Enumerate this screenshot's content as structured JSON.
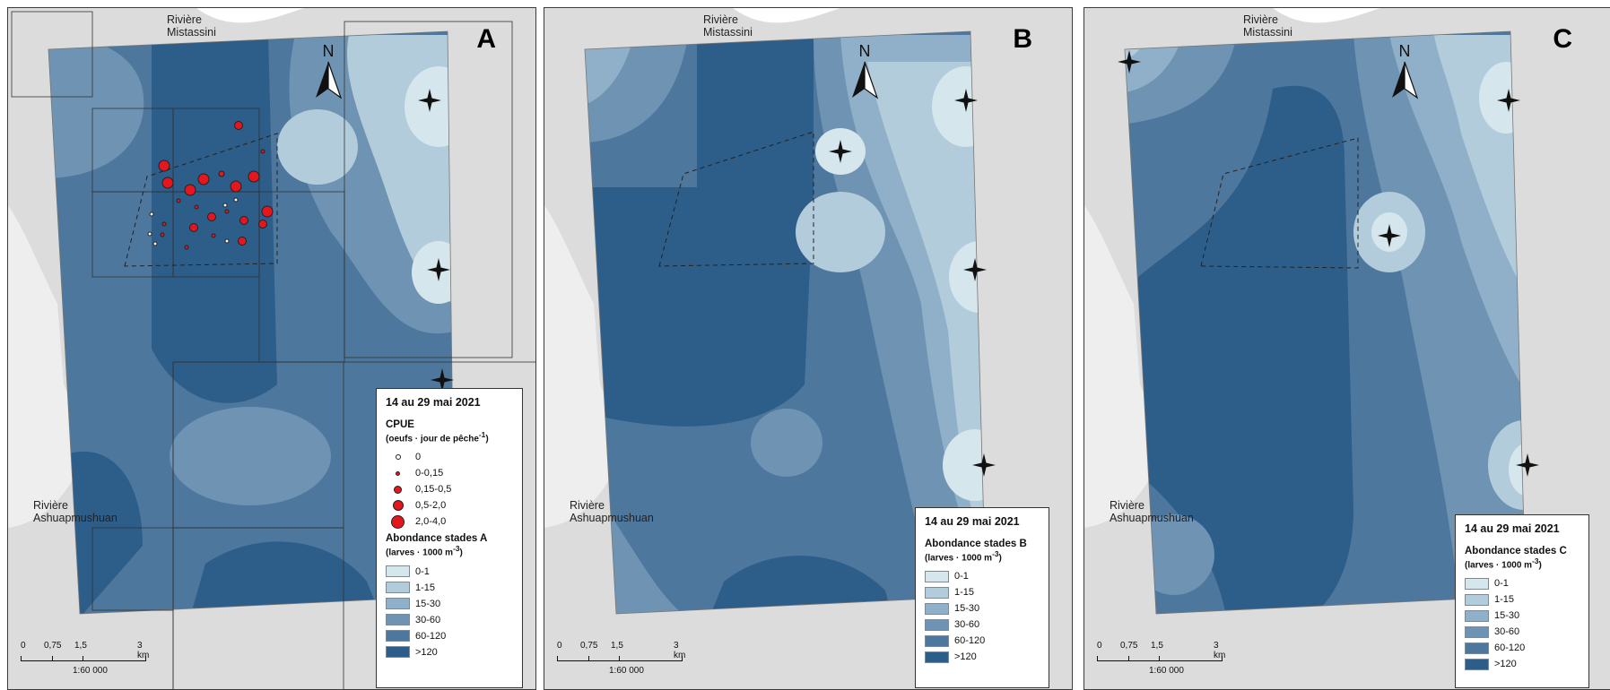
{
  "common": {
    "river_north_line1": "Rivière",
    "river_north_line2": "Mistassini",
    "river_west_line1": "Rivière",
    "river_west_line2": "Ashuapmushuan",
    "north_label": "N",
    "legend_date": "14 au 29 mai 2021",
    "legend_unit_prefix": "(larves · 1000 m",
    "legend_unit_exp": "-3",
    "legend_unit_suffix": ")",
    "classes": [
      {
        "label": "0-1",
        "color": "#d6e6ed"
      },
      {
        "label": "1-15",
        "color": "#b3ccdb"
      },
      {
        "label": "15-30",
        "color": "#8fb0c8"
      },
      {
        "label": "30-60",
        "color": "#6f94b3"
      },
      {
        "label": "60-120",
        "color": "#4e779d"
      },
      {
        "label": ">120",
        "color": "#2d5d89"
      }
    ],
    "scale": {
      "t0": "0",
      "t1": "0,75",
      "t2": "1,5",
      "t3": "3 km",
      "ratio": "1:60 000"
    },
    "colors": {
      "land": "#dcdcdc",
      "water": "#ffffff",
      "cpue_fill": "#e5161d"
    }
  },
  "panels": [
    {
      "letter": "A",
      "legend_sub": "Abondance stades A",
      "cpue": {
        "title": "CPUE",
        "unit_prefix": "(oeufs  ·  jour de pêche",
        "unit_exp": "-1",
        "unit_suffix": ")",
        "classes": [
          "0",
          "0-0,15",
          "0,15-0,5",
          "0,5-2,0",
          "2,0-4,0"
        ]
      }
    },
    {
      "letter": "B",
      "legend_sub": "Abondance stades B"
    },
    {
      "letter": "C",
      "legend_sub": "Abondance stades C"
    }
  ]
}
